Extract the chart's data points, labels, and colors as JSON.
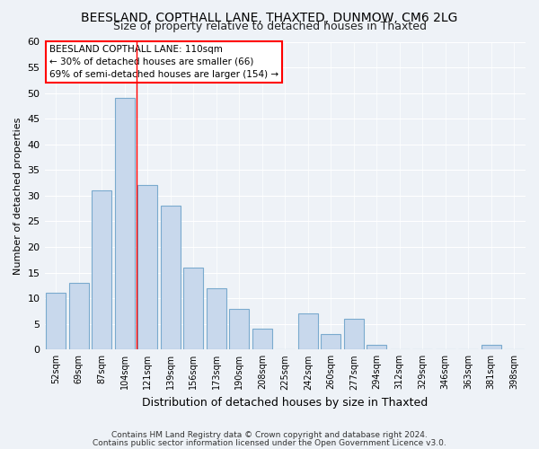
{
  "title": "BEESLAND, COPTHALL LANE, THAXTED, DUNMOW, CM6 2LG",
  "subtitle": "Size of property relative to detached houses in Thaxted",
  "xlabel": "Distribution of detached houses by size in Thaxted",
  "ylabel": "Number of detached properties",
  "bin_labels": [
    "52sqm",
    "69sqm",
    "87sqm",
    "104sqm",
    "121sqm",
    "139sqm",
    "156sqm",
    "173sqm",
    "190sqm",
    "208sqm",
    "225sqm",
    "242sqm",
    "260sqm",
    "277sqm",
    "294sqm",
    "312sqm",
    "329sqm",
    "346sqm",
    "363sqm",
    "381sqm",
    "398sqm"
  ],
  "bar_values": [
    11,
    13,
    31,
    49,
    32,
    28,
    16,
    12,
    8,
    4,
    0,
    7,
    3,
    6,
    1,
    0,
    0,
    0,
    0,
    1,
    0
  ],
  "bar_color": "#c8d8ec",
  "bar_edge_color": "#7aaace",
  "ylim": [
    0,
    60
  ],
  "yticks": [
    0,
    5,
    10,
    15,
    20,
    25,
    30,
    35,
    40,
    45,
    50,
    55,
    60
  ],
  "red_line_index": 3,
  "annotation_title": "BEESLAND COPTHALL LANE: 110sqm",
  "annotation_line1": "← 30% of detached houses are smaller (66)",
  "annotation_line2": "69% of semi-detached houses are larger (154) →",
  "footnote1": "Contains HM Land Registry data © Crown copyright and database right 2024.",
  "footnote2": "Contains public sector information licensed under the Open Government Licence v3.0.",
  "background_color": "#eef2f7",
  "grid_color": "#ffffff",
  "title_fontsize": 10,
  "subtitle_fontsize": 9,
  "ylabel_fontsize": 8,
  "xlabel_fontsize": 9
}
